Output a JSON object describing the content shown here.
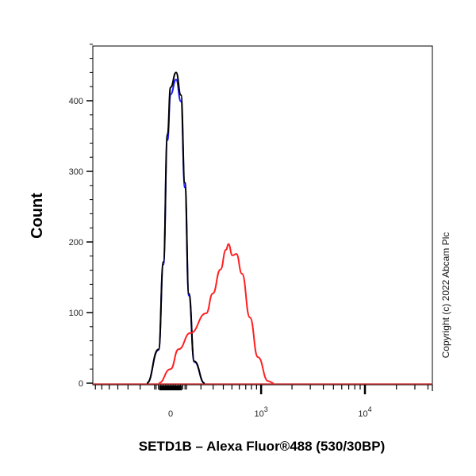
{
  "chart_data": {
    "type": "line",
    "title": "",
    "xlabel": "SETD1B – Alexa Fluor®488 (530/30BP)",
    "ylabel": "Count",
    "x_scale": "biexponential",
    "xlim": [
      -740,
      44000
    ],
    "ylim": [
      0,
      490
    ],
    "x_ticks": [
      {
        "value": 0,
        "label": "0",
        "sup": ""
      },
      {
        "value": 1000,
        "label": "10",
        "sup": "3"
      },
      {
        "value": 10000,
        "label": "10",
        "sup": "4"
      }
    ],
    "y_ticks": [
      0,
      100,
      200,
      300,
      400
    ],
    "grid": false,
    "legend": "none",
    "series": [
      {
        "color": "#1a1aff",
        "points": [
          [
            -152,
            0
          ],
          [
            -74,
            47
          ],
          [
            -44,
            168
          ],
          [
            -19,
            344
          ],
          [
            0,
            409
          ],
          [
            34,
            430
          ],
          [
            64,
            399
          ],
          [
            89,
            277
          ],
          [
            115,
            124
          ],
          [
            152,
            30
          ],
          [
            229,
            0
          ]
        ]
      },
      {
        "color": "#000000",
        "points": [
          [
            -152,
            0
          ],
          [
            -74,
            48
          ],
          [
            -44,
            172
          ],
          [
            -19,
            352
          ],
          [
            0,
            419
          ],
          [
            34,
            440
          ],
          [
            64,
            408
          ],
          [
            89,
            284
          ],
          [
            115,
            127
          ],
          [
            152,
            31
          ],
          [
            229,
            0
          ]
        ]
      },
      {
        "color": "#ff2020",
        "points": [
          [
            -74,
            0
          ],
          [
            0,
            20
          ],
          [
            49,
            48
          ],
          [
            125,
            71
          ],
          [
            241,
            99
          ],
          [
            297,
            127
          ],
          [
            370,
            161
          ],
          [
            430,
            189
          ],
          [
            458,
            197
          ],
          [
            506,
            181
          ],
          [
            558,
            183
          ],
          [
            640,
            155
          ],
          [
            772,
            93
          ],
          [
            929,
            37
          ],
          [
            1173,
            3
          ],
          [
            1329,
            0
          ]
        ]
      }
    ],
    "annotation": "Copyright (c) 2022 Abcam Plc"
  }
}
